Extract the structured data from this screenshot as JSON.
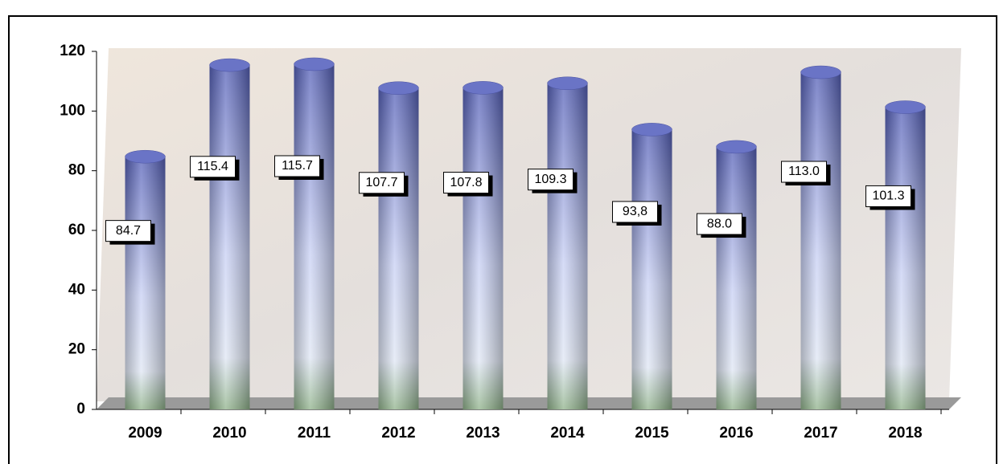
{
  "chart_data": {
    "type": "bar",
    "categories": [
      "2009",
      "2010",
      "2011",
      "2012",
      "2013",
      "2014",
      "2015",
      "2016",
      "2017",
      "2018"
    ],
    "values": [
      84.7,
      115.4,
      115.7,
      107.7,
      107.8,
      109.3,
      93.8,
      88.0,
      113.0,
      101.3
    ],
    "value_labels": [
      "84.7",
      "115.4",
      "115.7",
      "107.7",
      "107.8",
      "109.3",
      "93,8",
      "88.0",
      "113.0",
      "101.3"
    ],
    "color": "#5560b8",
    "ylim": [
      0,
      120
    ],
    "yticks": [
      0,
      20,
      40,
      60,
      80,
      100,
      120
    ]
  }
}
